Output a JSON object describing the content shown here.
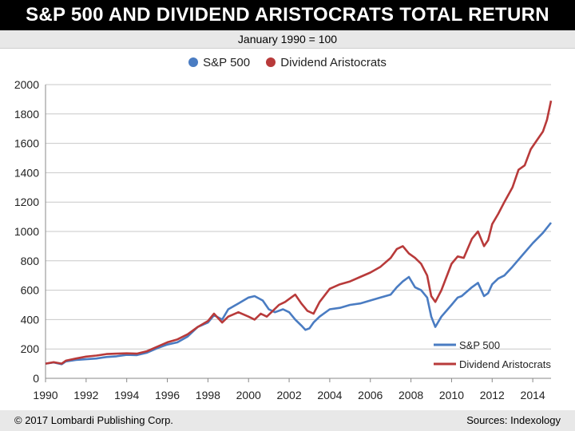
{
  "header": {
    "title": "S&P 500 AND DIVIDEND ARISTOCRATS TOTAL RETURN",
    "subtitle": "January 1990 = 100"
  },
  "footer": {
    "copyright": "© 2017 Lombardi Publishing Corp.",
    "source": "Sources: Indexology"
  },
  "colors": {
    "sp500": "#4a7cc2",
    "aristocrats": "#b83a3a",
    "grid": "#c8c8c8"
  },
  "chart_data": {
    "type": "line",
    "title": "S&P 500 AND DIVIDEND ARISTOCRATS TOTAL RETURN",
    "subtitle": "January 1990 = 100",
    "xlim": [
      1990,
      2014.9
    ],
    "ylim": [
      0,
      2000
    ],
    "xticks": [
      1990,
      1992,
      1994,
      1996,
      1998,
      2000,
      2002,
      2004,
      2006,
      2008,
      2010,
      2012,
      2014
    ],
    "yticks": [
      0,
      200,
      400,
      600,
      800,
      1000,
      1200,
      1400,
      1600,
      1800,
      2000
    ],
    "grid": "horizontal",
    "legend": [
      "top-center",
      "bottom-right"
    ],
    "series": [
      {
        "name": "S&P 500",
        "color": "#4a7cc2",
        "x": [
          1990,
          1990.4,
          1990.8,
          1991.0,
          1991.5,
          1992.0,
          1992.5,
          1993.0,
          1993.5,
          1994.0,
          1994.5,
          1995.0,
          1995.5,
          1996.0,
          1996.5,
          1997.0,
          1997.5,
          1998.0,
          1998.3,
          1998.7,
          1999.0,
          1999.5,
          2000.0,
          2000.3,
          2000.7,
          2001.0,
          2001.3,
          2001.7,
          2002.0,
          2002.3,
          2002.6,
          2002.8,
          2003.0,
          2003.2,
          2003.5,
          2004.0,
          2004.5,
          2005.0,
          2005.5,
          2006.0,
          2006.5,
          2007.0,
          2007.3,
          2007.6,
          2007.9,
          2008.2,
          2008.5,
          2008.8,
          2009.0,
          2009.2,
          2009.5,
          2010.0,
          2010.3,
          2010.5,
          2011.0,
          2011.3,
          2011.6,
          2011.8,
          2012.0,
          2012.3,
          2012.6,
          2013.0,
          2013.5,
          2014.0,
          2014.5,
          2014.9
        ],
        "y": [
          100,
          108,
          96,
          115,
          125,
          130,
          135,
          145,
          150,
          160,
          158,
          175,
          205,
          230,
          245,
          285,
          350,
          380,
          430,
          400,
          470,
          510,
          550,
          560,
          530,
          470,
          450,
          470,
          450,
          400,
          360,
          330,
          340,
          380,
          420,
          470,
          480,
          500,
          510,
          530,
          550,
          570,
          620,
          660,
          690,
          620,
          600,
          550,
          420,
          350,
          420,
          500,
          550,
          560,
          620,
          650,
          560,
          580,
          640,
          680,
          700,
          760,
          840,
          920,
          990,
          1060
        ]
      },
      {
        "name": "Dividend Aristocrats",
        "color": "#b83a3a",
        "x": [
          1990,
          1990.4,
          1990.8,
          1991.0,
          1991.5,
          1992.0,
          1992.5,
          1993.0,
          1993.5,
          1994.0,
          1994.5,
          1995.0,
          1995.5,
          1996.0,
          1996.5,
          1997.0,
          1997.5,
          1998.0,
          1998.3,
          1998.7,
          1999.0,
          1999.5,
          2000.0,
          2000.3,
          2000.6,
          2000.9,
          2001.2,
          2001.5,
          2001.8,
          2002.0,
          2002.3,
          2002.6,
          2002.9,
          2003.2,
          2003.5,
          2004.0,
          2004.5,
          2005.0,
          2005.5,
          2006.0,
          2006.5,
          2007.0,
          2007.3,
          2007.6,
          2007.9,
          2008.2,
          2008.5,
          2008.8,
          2009.0,
          2009.2,
          2009.5,
          2010.0,
          2010.3,
          2010.6,
          2011.0,
          2011.3,
          2011.6,
          2011.8,
          2012.0,
          2012.3,
          2012.6,
          2013.0,
          2013.3,
          2013.6,
          2013.9,
          2014.2,
          2014.5,
          2014.7,
          2014.9
        ],
        "y": [
          100,
          110,
          100,
          120,
          135,
          148,
          155,
          165,
          168,
          170,
          168,
          185,
          215,
          245,
          265,
          300,
          350,
          390,
          440,
          380,
          420,
          450,
          420,
          400,
          440,
          420,
          460,
          500,
          520,
          540,
          570,
          510,
          460,
          440,
          520,
          610,
          640,
          660,
          690,
          720,
          760,
          820,
          880,
          900,
          850,
          820,
          780,
          700,
          560,
          520,
          600,
          780,
          830,
          820,
          950,
          1000,
          900,
          940,
          1050,
          1120,
          1200,
          1300,
          1420,
          1450,
          1560,
          1620,
          1680,
          1760,
          1890
        ]
      }
    ]
  }
}
